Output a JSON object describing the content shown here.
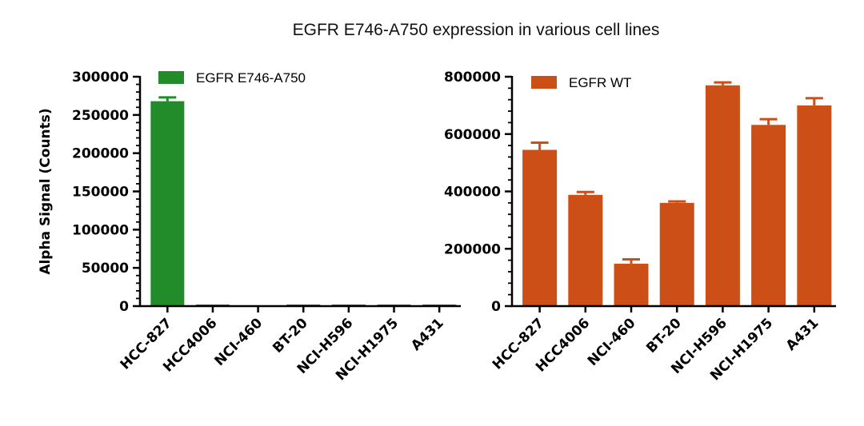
{
  "suptitle": "EGFR E746-A750 expression in various cell lines",
  "colors": {
    "mutant": "#228b2a",
    "wildtype": "#cc4f18"
  },
  "chart_data": [
    {
      "type": "bar",
      "title": "",
      "xlabel": "",
      "ylabel": "Alpha Signal (Counts)",
      "ylim": [
        0,
        300000
      ],
      "yticks": [
        0,
        50000,
        100000,
        150000,
        200000,
        250000,
        300000
      ],
      "ytick_labels": [
        "0",
        "50000",
        "100000",
        "150000",
        "200000",
        "250000",
        "300000"
      ],
      "categories": [
        "HCC-827",
        "HCC4006",
        "NCI-460",
        "BT-20",
        "NCI-H596",
        "NCI-H1975",
        "A431"
      ],
      "legend": "top-left",
      "series": [
        {
          "name": "EGFR E746-A750",
          "color": "#228b2a",
          "values": [
            268000,
            800,
            0,
            900,
            800,
            900,
            800
          ],
          "error": [
            5000,
            0,
            0,
            0,
            0,
            0,
            0
          ]
        }
      ]
    },
    {
      "type": "bar",
      "title": "",
      "xlabel": "",
      "ylabel": "",
      "ylim": [
        0,
        800000
      ],
      "yticks": [
        0,
        200000,
        400000,
        600000,
        800000
      ],
      "ytick_labels": [
        "0",
        "200000",
        "400000",
        "600000",
        "800000"
      ],
      "categories": [
        "HCC-827",
        "HCC4006",
        "NCI-460",
        "BT-20",
        "NCI-H596",
        "NCI-H1975",
        "A431"
      ],
      "legend": "top-left",
      "series": [
        {
          "name": "EGFR WT",
          "color": "#cc4f18",
          "values": [
            545000,
            388000,
            148000,
            360000,
            770000,
            632000,
            700000
          ],
          "error": [
            25000,
            10000,
            15000,
            5000,
            10000,
            20000,
            25000
          ]
        }
      ]
    }
  ]
}
